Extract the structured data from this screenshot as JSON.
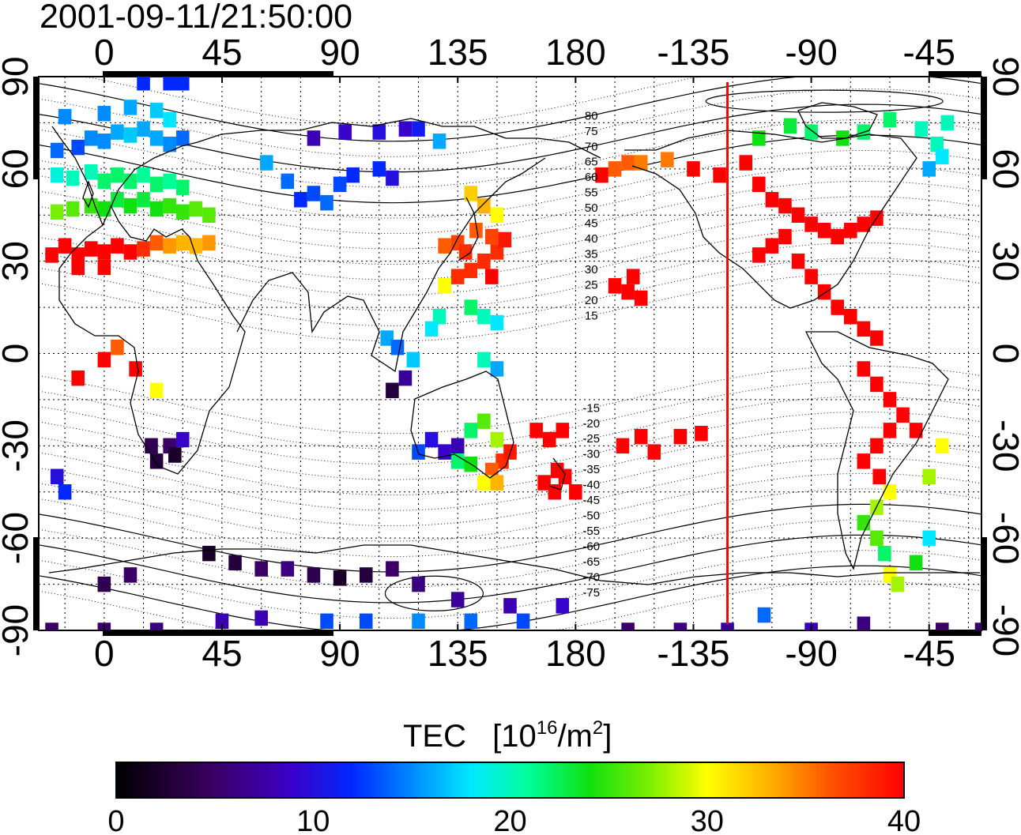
{
  "timestamp": "2001-09-11/21:50:00",
  "axes": {
    "lon_ticks": [
      "0",
      "45",
      "90",
      "135",
      "180",
      "-135",
      "-90",
      "-45"
    ],
    "lat_ticks": [
      "90",
      "60",
      "30",
      "0",
      "-30",
      "-60",
      "-90"
    ],
    "lat_values": [
      90,
      60,
      30,
      0,
      -30,
      -60,
      -90
    ]
  },
  "geomag_labels": [
    "80",
    "75",
    "70",
    "65",
    "60",
    "55",
    "50",
    "45",
    "40",
    "35",
    "30",
    "25",
    "20",
    "15",
    "-15",
    "-20",
    "-25",
    "-30",
    "-35",
    "-40",
    "-45",
    "-50",
    "-55",
    "-60",
    "-65",
    "-70",
    "-75"
  ],
  "colorbar": {
    "title": "TEC",
    "unit_prefix": "[10",
    "unit_exp1": "16",
    "unit_mid": "/m",
    "unit_exp2": "2",
    "unit_suffix": "]",
    "min": 0,
    "max": 40,
    "tick_labels": [
      "0",
      "10",
      "20",
      "30",
      "40"
    ]
  },
  "colors": {
    "terminator_line": "#ff0000",
    "tec_high": "#ff0000",
    "tec_low": "#2d0050"
  },
  "chart_data": {
    "type": "heatmap",
    "title": "2001-09-11/21:50:00",
    "xlabel": "",
    "ylabel": "",
    "x_range": [
      -25,
      335
    ],
    "y_range": [
      -90,
      90
    ],
    "grid": true,
    "value_label": "TEC [10^16/m^2]",
    "value_range": [
      0,
      40
    ],
    "terminator_longitude": 238,
    "cells": [
      [
        -20,
        32,
        40
      ],
      [
        -15,
        35,
        40
      ],
      [
        -10,
        32,
        40
      ],
      [
        -5,
        34,
        40
      ],
      [
        0,
        33,
        40
      ],
      [
        5,
        35,
        40
      ],
      [
        10,
        33,
        40
      ],
      [
        15,
        34,
        38
      ],
      [
        20,
        36,
        36
      ],
      [
        25,
        35,
        34
      ],
      [
        30,
        36,
        33
      ],
      [
        35,
        35,
        33
      ],
      [
        40,
        36,
        34
      ],
      [
        -10,
        28,
        40
      ],
      [
        0,
        28,
        40
      ],
      [
        -18,
        46,
        27
      ],
      [
        -12,
        47,
        26
      ],
      [
        -5,
        48,
        25
      ],
      [
        0,
        47,
        24
      ],
      [
        5,
        50,
        23
      ],
      [
        10,
        48,
        24
      ],
      [
        15,
        50,
        23
      ],
      [
        20,
        47,
        24
      ],
      [
        25,
        48,
        25
      ],
      [
        30,
        46,
        25
      ],
      [
        35,
        47,
        26
      ],
      [
        40,
        45,
        26
      ],
      [
        -18,
        58,
        19
      ],
      [
        -12,
        57,
        20
      ],
      [
        -5,
        59,
        20
      ],
      [
        0,
        56,
        22
      ],
      [
        5,
        58,
        22
      ],
      [
        10,
        56,
        22
      ],
      [
        15,
        58,
        21
      ],
      [
        20,
        55,
        22
      ],
      [
        25,
        56,
        21
      ],
      [
        30,
        54,
        22
      ],
      [
        -18,
        66,
        14
      ],
      [
        -10,
        67,
        13
      ],
      [
        -5,
        70,
        15
      ],
      [
        0,
        69,
        15
      ],
      [
        5,
        72,
        16
      ],
      [
        10,
        71,
        17
      ],
      [
        15,
        73,
        16
      ],
      [
        20,
        70,
        16
      ],
      [
        25,
        68,
        15
      ],
      [
        30,
        70,
        14
      ],
      [
        -15,
        77,
        15
      ],
      [
        0,
        78,
        15
      ],
      [
        10,
        80,
        16
      ],
      [
        20,
        79,
        17
      ],
      [
        25,
        76,
        18
      ],
      [
        15,
        88,
        12
      ],
      [
        25,
        88,
        12
      ],
      [
        30,
        88,
        12
      ],
      [
        62,
        62,
        16
      ],
      [
        70,
        56,
        14
      ],
      [
        75,
        50,
        12
      ],
      [
        80,
        52,
        13
      ],
      [
        85,
        49,
        14
      ],
      [
        90,
        55,
        13
      ],
      [
        95,
        58,
        12
      ],
      [
        105,
        60,
        12
      ],
      [
        110,
        57,
        10
      ],
      [
        80,
        70,
        8
      ],
      [
        92,
        72,
        9
      ],
      [
        105,
        72,
        10
      ],
      [
        115,
        73,
        9
      ],
      [
        120,
        73,
        11
      ],
      [
        128,
        69,
        16
      ],
      [
        140,
        52,
        32
      ],
      [
        145,
        48,
        33
      ],
      [
        150,
        45,
        30
      ],
      [
        142,
        40,
        36
      ],
      [
        148,
        38,
        37
      ],
      [
        135,
        36,
        37
      ],
      [
        138,
        33,
        38
      ],
      [
        130,
        35,
        36
      ],
      [
        145,
        30,
        38
      ],
      [
        140,
        27,
        38
      ],
      [
        150,
        33,
        38
      ],
      [
        153,
        37,
        39
      ],
      [
        148,
        25,
        40
      ],
      [
        135,
        25,
        38
      ],
      [
        130,
        22,
        30
      ],
      [
        140,
        15,
        22
      ],
      [
        145,
        12,
        20
      ],
      [
        150,
        10,
        18
      ],
      [
        128,
        12,
        20
      ],
      [
        125,
        8,
        18
      ],
      [
        108,
        5,
        16
      ],
      [
        112,
        2,
        14
      ],
      [
        118,
        -2,
        17
      ],
      [
        115,
        -8,
        7
      ],
      [
        110,
        -12,
        3
      ],
      [
        145,
        -2,
        20
      ],
      [
        150,
        -5,
        16
      ],
      [
        125,
        -28,
        10
      ],
      [
        130,
        -32,
        9
      ],
      [
        135,
        -30,
        8
      ],
      [
        120,
        -32,
        13
      ],
      [
        140,
        -25,
        22
      ],
      [
        145,
        -22,
        26
      ],
      [
        150,
        -28,
        28
      ],
      [
        152,
        -35,
        38
      ],
      [
        155,
        -32,
        39
      ],
      [
        148,
        -38,
        36
      ],
      [
        145,
        -42,
        30
      ],
      [
        150,
        -42,
        33
      ],
      [
        140,
        -36,
        24
      ],
      [
        135,
        -35,
        22
      ],
      [
        165,
        -25,
        40
      ],
      [
        170,
        -28,
        40
      ],
      [
        175,
        -25,
        40
      ],
      [
        168,
        -42,
        40
      ],
      [
        172,
        -45,
        40
      ],
      [
        176,
        -40,
        40
      ],
      [
        180,
        -45,
        40
      ],
      [
        173,
        -38,
        40
      ],
      [
        198,
        -30,
        40
      ],
      [
        205,
        -27,
        40
      ],
      [
        210,
        -32,
        40
      ],
      [
        220,
        -27,
        40
      ],
      [
        228,
        -26,
        40
      ],
      [
        195,
        22,
        40
      ],
      [
        200,
        20,
        40
      ],
      [
        205,
        18,
        40
      ],
      [
        202,
        25,
        40
      ],
      [
        190,
        58,
        40
      ],
      [
        195,
        60,
        36
      ],
      [
        200,
        62,
        36
      ],
      [
        205,
        62,
        35
      ],
      [
        215,
        63,
        35
      ],
      [
        225,
        60,
        40
      ],
      [
        235,
        58,
        40
      ],
      [
        245,
        62,
        40
      ],
      [
        250,
        55,
        40
      ],
      [
        255,
        50,
        40
      ],
      [
        260,
        48,
        40
      ],
      [
        265,
        45,
        40
      ],
      [
        270,
        42,
        40
      ],
      [
        275,
        40,
        40
      ],
      [
        280,
        38,
        40
      ],
      [
        285,
        40,
        40
      ],
      [
        290,
        42,
        40
      ],
      [
        295,
        44,
        40
      ],
      [
        260,
        38,
        40
      ],
      [
        255,
        35,
        40
      ],
      [
        250,
        32,
        40
      ],
      [
        265,
        30,
        40
      ],
      [
        270,
        25,
        40
      ],
      [
        275,
        20,
        40
      ],
      [
        280,
        15,
        40
      ],
      [
        285,
        12,
        40
      ],
      [
        290,
        8,
        40
      ],
      [
        295,
        5,
        40
      ],
      [
        250,
        70,
        24
      ],
      [
        262,
        74,
        23
      ],
      [
        270,
        72,
        22
      ],
      [
        282,
        70,
        24
      ],
      [
        290,
        72,
        22
      ],
      [
        300,
        76,
        22
      ],
      [
        312,
        73,
        20
      ],
      [
        318,
        68,
        20
      ],
      [
        322,
        75,
        20
      ],
      [
        320,
        64,
        18
      ],
      [
        315,
        60,
        16
      ],
      [
        290,
        -5,
        40
      ],
      [
        295,
        -10,
        40
      ],
      [
        300,
        -15,
        40
      ],
      [
        305,
        -20,
        40
      ],
      [
        310,
        -25,
        40
      ],
      [
        300,
        -25,
        40
      ],
      [
        295,
        -30,
        40
      ],
      [
        290,
        -35,
        40
      ],
      [
        296,
        -40,
        40
      ],
      [
        300,
        -45,
        30
      ],
      [
        295,
        -50,
        28
      ],
      [
        290,
        -55,
        25
      ],
      [
        295,
        -60,
        26
      ],
      [
        298,
        -65,
        22
      ],
      [
        300,
        -72,
        30
      ],
      [
        303,
        -75,
        28
      ],
      [
        310,
        -68,
        24
      ],
      [
        315,
        -60,
        18
      ],
      [
        315,
        -40,
        28
      ],
      [
        320,
        -30,
        30
      ],
      [
        -10,
        -8,
        40
      ],
      [
        0,
        -2,
        40
      ],
      [
        5,
        2,
        36
      ],
      [
        12,
        -5,
        40
      ],
      [
        20,
        -12,
        30
      ],
      [
        18,
        -30,
        4
      ],
      [
        20,
        -35,
        3
      ],
      [
        25,
        -30,
        5
      ],
      [
        30,
        -28,
        9
      ],
      [
        27,
        -33,
        2
      ],
      [
        -18,
        -40,
        10
      ],
      [
        -15,
        -45,
        12
      ],
      [
        40,
        -65,
        2
      ],
      [
        50,
        -68,
        3
      ],
      [
        60,
        -70,
        5
      ],
      [
        70,
        -70,
        6
      ],
      [
        80,
        -72,
        4
      ],
      [
        90,
        -73,
        2
      ],
      [
        100,
        -72,
        3
      ],
      [
        110,
        -70,
        5
      ],
      [
        120,
        -75,
        6
      ],
      [
        135,
        -80,
        7
      ],
      [
        155,
        -82,
        8
      ],
      [
        175,
        -82,
        9
      ],
      [
        10,
        -72,
        5
      ],
      [
        0,
        -75,
        4
      ],
      [
        -20,
        -90,
        5
      ],
      [
        0,
        -90,
        5
      ],
      [
        20,
        -90,
        6
      ],
      [
        45,
        -87,
        8
      ],
      [
        60,
        -86,
        8
      ],
      [
        85,
        -87,
        13
      ],
      [
        100,
        -87,
        13
      ],
      [
        120,
        -87,
        15
      ],
      [
        140,
        -87,
        14
      ],
      [
        160,
        -87,
        13
      ],
      [
        200,
        -90,
        5
      ],
      [
        220,
        -90,
        6
      ],
      [
        238,
        -90,
        7
      ],
      [
        270,
        -90,
        8
      ],
      [
        290,
        -88,
        6
      ],
      [
        320,
        -90,
        5
      ],
      [
        335,
        -90,
        5
      ],
      [
        252,
        -85,
        14
      ]
    ]
  }
}
